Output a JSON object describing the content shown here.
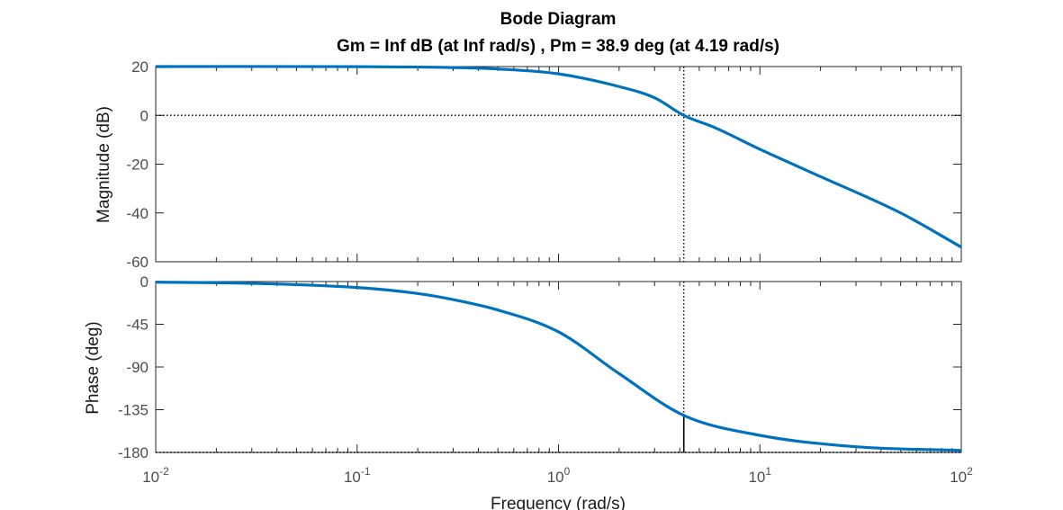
{
  "chart_data": [
    {
      "type": "line",
      "panel": "magnitude",
      "title": "Bode Diagram",
      "subtitle": "Gm = Inf dB (at Inf rad/s) ,  Pm = 38.9 deg (at 4.19 rad/s)",
      "ylabel": "Magnitude (dB)",
      "xscale": "log",
      "xlim": [
        0.01,
        100
      ],
      "ylim": [
        -60,
        20
      ],
      "yticks": [
        "20",
        "0",
        "-20",
        "-40",
        "-60"
      ],
      "series": [
        {
          "color": "#0072bd",
          "x": [
            0.01,
            0.1,
            0.3,
            0.5,
            1,
            2,
            3,
            4.19,
            6,
            10,
            20,
            50,
            100
          ],
          "y": [
            20.0,
            19.96,
            19.6,
            19.0,
            17.0,
            11.8,
            7.2,
            0.0,
            -5.1,
            -13.9,
            -25.1,
            -40.0,
            -54.0
          ]
        }
      ],
      "reference_lines": [
        {
          "axis": "y",
          "value": 0,
          "style": "dotted"
        },
        {
          "axis": "x",
          "value": 4.19,
          "style": "dotted"
        }
      ]
    },
    {
      "type": "line",
      "panel": "phase",
      "ylabel": "Phase (deg)",
      "xlabel": "Frequency  (rad/s)",
      "xscale": "log",
      "xlim": [
        0.01,
        100
      ],
      "ylim": [
        -180,
        0
      ],
      "yticks": [
        "0",
        "-45",
        "-90",
        "-135",
        "-180"
      ],
      "xticks": [
        {
          "base": "10",
          "exp": "-2"
        },
        {
          "base": "10",
          "exp": "-1"
        },
        {
          "base": "10",
          "exp": "0"
        },
        {
          "base": "10",
          "exp": "1"
        },
        {
          "base": "10",
          "exp": "2"
        }
      ],
      "series": [
        {
          "color": "#0072bd",
          "x": [
            0.01,
            0.03,
            0.1,
            0.2,
            0.3,
            0.5,
            1,
            2,
            4.19,
            10,
            30,
            100
          ],
          "y": [
            -0.6,
            -1.9,
            -6.3,
            -12.6,
            -19.0,
            -30.0,
            -53.0,
            -97.0,
            -141.0,
            -162.0,
            -174.0,
            -178.0
          ]
        }
      ],
      "reference_lines": [
        {
          "axis": "y",
          "value": -180,
          "style": "dotted"
        },
        {
          "axis": "x",
          "value": 4.19,
          "style": "dotted"
        }
      ],
      "margin_marker": {
        "x": 4.19,
        "from": -180,
        "to": -141.1
      }
    }
  ]
}
